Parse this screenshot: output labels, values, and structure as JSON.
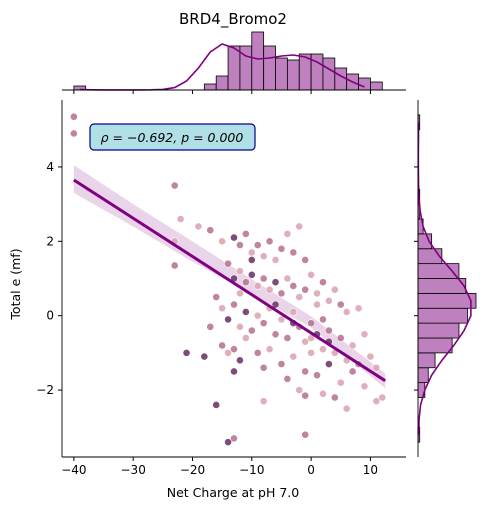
{
  "chart_data": {
    "type": "scatter",
    "title": "BRD4_Bromo2",
    "xlabel": "Net Charge at pH 7.0",
    "ylabel": "Total e (mf)",
    "xlim": [
      -42,
      16
    ],
    "ylim": [
      -3.8,
      5.8
    ],
    "x_ticks": [
      -40,
      -30,
      -20,
      -10,
      0,
      10
    ],
    "y_ticks": [
      -2,
      0,
      2,
      4
    ],
    "x_tick_labels": [
      "−40",
      "−30",
      "−20",
      "−10",
      "0",
      "10"
    ],
    "y_tick_labels": [
      "−2",
      "0",
      "2",
      "4"
    ],
    "annotation": "ρ = −0.692, p = 0.000",
    "grid": false,
    "colors": {
      "line": "#800080",
      "ci_band": "#e6cde6",
      "marginal_fill": "#bf80bf",
      "marginal_edge": "#000000",
      "annotation_bg": "#b0e0e6",
      "annotation_edge": "#00008b",
      "point_light": "#dca8b3",
      "point_mid": "#b87892",
      "point_dark": "#6e3a6a"
    },
    "regression": {
      "x": [
        -40,
        12.5
      ],
      "y": [
        3.65,
        -1.75
      ]
    },
    "confidence_band": {
      "x": [
        -40,
        -30,
        -20,
        -10,
        0,
        12.5
      ],
      "upper": [
        4.05,
        3.0,
        2.0,
        0.98,
        -0.02,
        -1.55
      ],
      "lower": [
        3.3,
        2.4,
        1.45,
        0.58,
        -0.32,
        -1.95
      ]
    },
    "points": [
      {
        "x": -40,
        "y": 5.35,
        "shade": 2
      },
      {
        "x": -40,
        "y": 4.9,
        "shade": 2
      },
      {
        "x": -23,
        "y": 3.5,
        "shade": 2
      },
      {
        "x": -22,
        "y": 2.6,
        "shade": 1
      },
      {
        "x": -23,
        "y": 2.0,
        "shade": 1
      },
      {
        "x": -23,
        "y": 1.35,
        "shade": 2
      },
      {
        "x": -19,
        "y": 2.4,
        "shade": 1
      },
      {
        "x": -17,
        "y": 2.3,
        "shade": 2
      },
      {
        "x": -15,
        "y": 2.0,
        "shade": 1
      },
      {
        "x": -13,
        "y": 2.1,
        "shade": 3
      },
      {
        "x": -12,
        "y": 1.9,
        "shade": 2
      },
      {
        "x": -11,
        "y": 2.2,
        "shade": 2
      },
      {
        "x": -10,
        "y": 1.7,
        "shade": 1
      },
      {
        "x": -9,
        "y": 1.9,
        "shade": 2
      },
      {
        "x": -8,
        "y": 1.6,
        "shade": 1
      },
      {
        "x": -7,
        "y": 2.0,
        "shade": 2
      },
      {
        "x": -6,
        "y": 1.5,
        "shade": 1
      },
      {
        "x": -5,
        "y": 1.8,
        "shade": 2
      },
      {
        "x": -4,
        "y": 2.2,
        "shade": 1
      },
      {
        "x": -3,
        "y": 1.7,
        "shade": 2
      },
      {
        "x": -2,
        "y": 2.4,
        "shade": 1
      },
      {
        "x": -1,
        "y": 1.5,
        "shade": 2
      },
      {
        "x": -14,
        "y": 1.4,
        "shade": 2
      },
      {
        "x": -13,
        "y": 1.0,
        "shade": 3
      },
      {
        "x": -12,
        "y": 1.2,
        "shade": 1
      },
      {
        "x": -11,
        "y": 0.9,
        "shade": 2
      },
      {
        "x": -10,
        "y": 1.1,
        "shade": 3
      },
      {
        "x": -9,
        "y": 0.8,
        "shade": 1
      },
      {
        "x": -8,
        "y": 1.0,
        "shade": 2
      },
      {
        "x": -7,
        "y": 0.7,
        "shade": 1
      },
      {
        "x": -6,
        "y": 0.9,
        "shade": 3
      },
      {
        "x": -5,
        "y": 0.6,
        "shade": 2
      },
      {
        "x": -4,
        "y": 1.0,
        "shade": 1
      },
      {
        "x": -3,
        "y": 0.8,
        "shade": 2
      },
      {
        "x": -2,
        "y": 0.5,
        "shade": 1
      },
      {
        "x": -1,
        "y": 0.7,
        "shade": 2
      },
      {
        "x": 0,
        "y": 1.1,
        "shade": 1
      },
      {
        "x": 1,
        "y": 0.6,
        "shade": 1
      },
      {
        "x": 2,
        "y": 0.9,
        "shade": 2
      },
      {
        "x": 3,
        "y": 0.4,
        "shade": 1
      },
      {
        "x": 4,
        "y": 0.7,
        "shade": 1
      },
      {
        "x": 5,
        "y": 0.3,
        "shade": 2
      },
      {
        "x": 6,
        "y": 0.1,
        "shade": 1
      },
      {
        "x": 8,
        "y": 0.2,
        "shade": 1
      },
      {
        "x": -16,
        "y": 0.5,
        "shade": 2
      },
      {
        "x": -15,
        "y": 0.2,
        "shade": 1
      },
      {
        "x": -14,
        "y": -0.1,
        "shade": 3
      },
      {
        "x": -13,
        "y": 0.3,
        "shade": 2
      },
      {
        "x": -12,
        "y": -0.3,
        "shade": 1
      },
      {
        "x": -11,
        "y": 0.1,
        "shade": 3
      },
      {
        "x": -10,
        "y": -0.4,
        "shade": 2
      },
      {
        "x": -9,
        "y": 0.0,
        "shade": 1
      },
      {
        "x": -8,
        "y": -0.2,
        "shade": 2
      },
      {
        "x": -7,
        "y": 0.2,
        "shade": 1
      },
      {
        "x": -6,
        "y": -0.5,
        "shade": 2
      },
      {
        "x": -5,
        "y": -0.1,
        "shade": 1
      },
      {
        "x": -4,
        "y": -0.6,
        "shade": 2
      },
      {
        "x": -3,
        "y": 0.1,
        "shade": 1
      },
      {
        "x": -2,
        "y": -0.3,
        "shade": 2
      },
      {
        "x": -1,
        "y": -0.7,
        "shade": 1
      },
      {
        "x": 0,
        "y": -0.2,
        "shade": 2
      },
      {
        "x": 1,
        "y": -0.5,
        "shade": 3
      },
      {
        "x": 2,
        "y": -0.9,
        "shade": 1
      },
      {
        "x": 3,
        "y": -0.4,
        "shade": 2
      },
      {
        "x": 4,
        "y": -1.0,
        "shade": 1
      },
      {
        "x": 5,
        "y": -0.6,
        "shade": 2
      },
      {
        "x": 6,
        "y": -1.2,
        "shade": 1
      },
      {
        "x": 7,
        "y": -0.8,
        "shade": 1
      },
      {
        "x": 8,
        "y": -1.3,
        "shade": 2
      },
      {
        "x": 9,
        "y": -0.5,
        "shade": 1
      },
      {
        "x": 10,
        "y": -1.1,
        "shade": 1
      },
      {
        "x": 11,
        "y": -1.4,
        "shade": 1
      },
      {
        "x": -17,
        "y": -0.3,
        "shade": 2
      },
      {
        "x": -18,
        "y": -1.1,
        "shade": 3
      },
      {
        "x": -15,
        "y": -0.8,
        "shade": 2
      },
      {
        "x": -14,
        "y": -1.0,
        "shade": 1
      },
      {
        "x": -13,
        "y": -0.9,
        "shade": 2
      },
      {
        "x": -12,
        "y": -1.2,
        "shade": 3
      },
      {
        "x": -11,
        "y": -0.6,
        "shade": 1
      },
      {
        "x": -9,
        "y": -1.0,
        "shade": 2
      },
      {
        "x": -7,
        "y": -0.9,
        "shade": 1
      },
      {
        "x": -5,
        "y": -1.3,
        "shade": 2
      },
      {
        "x": -3,
        "y": -1.1,
        "shade": 1
      },
      {
        "x": -1,
        "y": -1.5,
        "shade": 2
      },
      {
        "x": 0,
        "y": -1.0,
        "shade": 1
      },
      {
        "x": 1,
        "y": -1.6,
        "shade": 2
      },
      {
        "x": 3,
        "y": -1.3,
        "shade": 3
      },
      {
        "x": 5,
        "y": -1.8,
        "shade": 1
      },
      {
        "x": 7,
        "y": -1.5,
        "shade": 2
      },
      {
        "x": 9,
        "y": -1.9,
        "shade": 1
      },
      {
        "x": -21,
        "y": -1.0,
        "shade": 3
      },
      {
        "x": -13,
        "y": -1.5,
        "shade": 3
      },
      {
        "x": -8,
        "y": -1.4,
        "shade": 2
      },
      {
        "x": -4,
        "y": -1.7,
        "shade": 2
      },
      {
        "x": -2,
        "y": -2.0,
        "shade": 1
      },
      {
        "x": 2,
        "y": -2.1,
        "shade": 1
      },
      {
        "x": 4,
        "y": -2.2,
        "shade": 2
      },
      {
        "x": 6,
        "y": -2.5,
        "shade": 1
      },
      {
        "x": 11,
        "y": -2.3,
        "shade": 1
      },
      {
        "x": 12,
        "y": -2.2,
        "shade": 1
      },
      {
        "x": -13,
        "y": -3.3,
        "shade": 2
      },
      {
        "x": -14,
        "y": -3.4,
        "shade": 3
      },
      {
        "x": -1,
        "y": -3.2,
        "shade": 2
      },
      {
        "x": -8,
        "y": -2.3,
        "shade": 1
      },
      {
        "x": -1,
        "y": -2.15,
        "shade": 2
      },
      {
        "x": -16,
        "y": -2.4,
        "shade": 3
      },
      {
        "x": 1,
        "y": 0.3,
        "shade": 1
      },
      {
        "x": 2,
        "y": -0.1,
        "shade": 2
      },
      {
        "x": -10,
        "y": 1.5,
        "shade": 3
      },
      {
        "x": -12,
        "y": 0.6,
        "shade": 1
      },
      {
        "x": -6,
        "y": 0.3,
        "shade": 3
      },
      {
        "x": -3,
        "y": -0.2,
        "shade": 3
      },
      {
        "x": 0,
        "y": -0.6,
        "shade": 1
      },
      {
        "x": 3,
        "y": -0.7,
        "shade": 3
      }
    ],
    "marginal_x": {
      "bin_edges": [
        -40,
        -38,
        -36,
        -34,
        -32,
        -30,
        -28,
        -26,
        -24,
        -22,
        -20,
        -18,
        -16,
        -14,
        -12,
        -10,
        -8,
        -6,
        -4,
        -2,
        0,
        2,
        4,
        6,
        8,
        10,
        12
      ],
      "counts": [
        2,
        0,
        0,
        0,
        0,
        0,
        0,
        0,
        0,
        0,
        0,
        3,
        7,
        22,
        22,
        29,
        22,
        16,
        15,
        18,
        18,
        16,
        11,
        8,
        6,
        4
      ],
      "kde": [
        0.2,
        0.1,
        0.05,
        0.05,
        0.05,
        0.05,
        0.1,
        0.3,
        1.2,
        4.5,
        11,
        19,
        23,
        21,
        17,
        15.5,
        16,
        17,
        17.5,
        16.5,
        14,
        10.5,
        7,
        4,
        1.5
      ]
    },
    "marginal_y": {
      "bin_edges": [
        -3.4,
        -3.0,
        -2.6,
        -2.2,
        -1.8,
        -1.4,
        -1.0,
        -0.6,
        -0.2,
        0.2,
        0.6,
        1.0,
        1.4,
        1.8,
        2.2,
        2.6,
        3.0,
        3.4,
        3.8,
        4.2,
        4.6,
        5.0,
        5.4
      ],
      "counts": [
        1,
        0,
        0,
        4,
        6,
        10,
        20,
        24,
        29,
        34,
        28,
        24,
        14,
        8,
        3,
        1,
        1,
        0,
        0,
        0,
        0,
        1
      ],
      "kde": [
        0.5,
        0.6,
        1.5,
        4,
        8,
        14,
        21,
        27,
        31,
        31,
        27,
        20,
        12.5,
        6.5,
        3,
        1.3,
        0.5,
        0.3,
        0.2,
        0.2,
        0.3,
        0.3
      ]
    }
  }
}
